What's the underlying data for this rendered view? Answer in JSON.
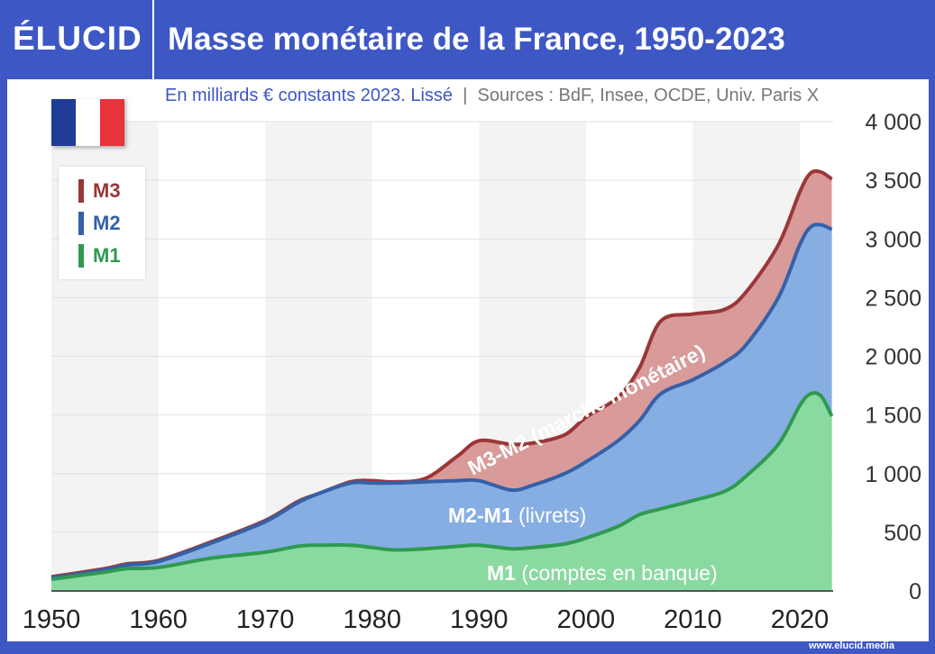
{
  "header": {
    "logo": "ÉLUCID",
    "title": "Masse monétaire de la France, 1950-2023"
  },
  "subtitle": {
    "units": "En milliards € constants 2023. Lissé",
    "sep": "|",
    "sources": "Sources : BdF, Insee, OCDE, Univ. Paris X"
  },
  "footer": {
    "url": "www.elucid.media"
  },
  "flag": {
    "colors": [
      "#1f3c96",
      "#ffffff",
      "#e8323c"
    ]
  },
  "legend": [
    {
      "label": "M3",
      "color": "#9b3636"
    },
    {
      "label": "M2",
      "color": "#3461a8"
    },
    {
      "label": "M1",
      "color": "#2f9a4f"
    }
  ],
  "chart_data": {
    "type": "area",
    "title": "Masse monétaire de la France, 1950-2023",
    "ylabel": "En milliards € constants 2023",
    "xlim": [
      1950,
      2023
    ],
    "ylim": [
      0,
      4000
    ],
    "x_ticks": [
      "1950",
      "1960",
      "1970",
      "1980",
      "1990",
      "2000",
      "2010",
      "2020"
    ],
    "y_ticks": [
      "0",
      "500",
      "1 000",
      "1 500",
      "2 000",
      "2 500",
      "3 000",
      "3 500",
      "4 000"
    ],
    "grid": true,
    "x": [
      1950,
      1955,
      1957,
      1960,
      1965,
      1970,
      1973,
      1975,
      1978,
      1980,
      1982,
      1985,
      1988,
      1990,
      1993,
      1995,
      1998,
      2000,
      2003,
      2005,
      2007,
      2010,
      2013,
      2015,
      2018,
      2020,
      2021,
      2022,
      2023
    ],
    "series": [
      {
        "name": "M3",
        "color": "#9b3636",
        "fill": "#d99a9a",
        "values": [
          120,
          190,
          230,
          260,
          420,
          600,
          760,
          830,
          930,
          940,
          930,
          960,
          1150,
          1280,
          1250,
          1260,
          1330,
          1480,
          1650,
          1900,
          2300,
          2360,
          2400,
          2550,
          2950,
          3400,
          3560,
          3570,
          3510
        ]
      },
      {
        "name": "M2",
        "color": "#3461a8",
        "fill": "#86aee3",
        "values": [
          110,
          180,
          220,
          250,
          410,
          590,
          750,
          830,
          920,
          920,
          920,
          930,
          940,
          940,
          860,
          900,
          1000,
          1100,
          1280,
          1450,
          1680,
          1800,
          1950,
          2100,
          2500,
          2950,
          3100,
          3120,
          3080
        ]
      },
      {
        "name": "M1",
        "color": "#2f9a4f",
        "fill": "#8ad9a0",
        "values": [
          100,
          160,
          190,
          200,
          280,
          330,
          380,
          390,
          390,
          370,
          350,
          360,
          380,
          390,
          360,
          370,
          400,
          450,
          550,
          650,
          700,
          770,
          850,
          980,
          1250,
          1580,
          1680,
          1660,
          1490
        ]
      }
    ],
    "annotations": {
      "m3m2": "M3-M2 (marché monétaire)",
      "m2m1_a": "M2-M1",
      "m2m1_b": "(livrets)",
      "m1_a": "M1",
      "m1_b": "(comptes en banque)"
    }
  }
}
